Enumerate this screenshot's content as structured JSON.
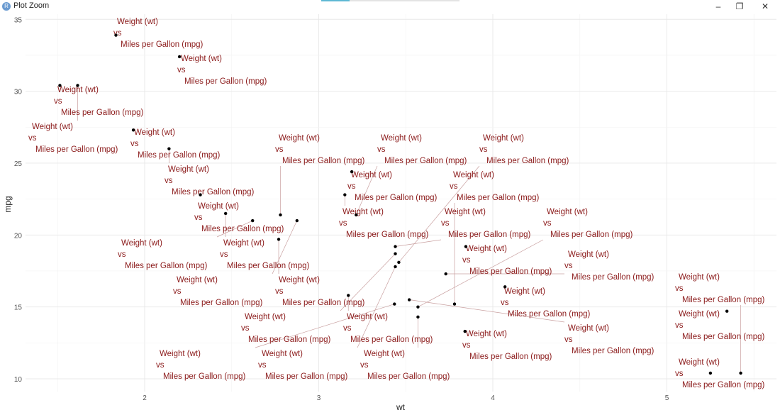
{
  "window": {
    "title": "Plot Zoom",
    "icon": "r-logo-icon",
    "minimize": "–",
    "restore": "❐",
    "close": "✕"
  },
  "chart_data": {
    "type": "scatter",
    "title": "",
    "xlabel": "wt",
    "ylabel": "mpg",
    "xlim": [
      1.33,
      5.64
    ],
    "ylim": [
      9.1,
      35.3
    ],
    "xticks": [
      "2",
      "3",
      "4",
      "5"
    ],
    "yticks": [
      "10",
      "15",
      "20",
      "25",
      "30",
      "35"
    ],
    "grid": true,
    "point_label": [
      "Weight (wt)",
      "vs",
      "Miles per Gallon (mpg)"
    ],
    "label_color": "#8b1a1a",
    "points": [
      {
        "wt": 2.62,
        "mpg": 21.0
      },
      {
        "wt": 2.875,
        "mpg": 21.0
      },
      {
        "wt": 2.32,
        "mpg": 22.8
      },
      {
        "wt": 3.215,
        "mpg": 21.4
      },
      {
        "wt": 3.44,
        "mpg": 18.7
      },
      {
        "wt": 3.46,
        "mpg": 18.1
      },
      {
        "wt": 3.57,
        "mpg": 14.3
      },
      {
        "wt": 3.19,
        "mpg": 24.4
      },
      {
        "wt": 3.15,
        "mpg": 22.8
      },
      {
        "wt": 3.44,
        "mpg": 19.2
      },
      {
        "wt": 3.44,
        "mpg": 17.8
      },
      {
        "wt": 4.07,
        "mpg": 16.4
      },
      {
        "wt": 3.73,
        "mpg": 17.3
      },
      {
        "wt": 3.78,
        "mpg": 15.2
      },
      {
        "wt": 5.25,
        "mpg": 10.4
      },
      {
        "wt": 5.424,
        "mpg": 10.4
      },
      {
        "wt": 5.345,
        "mpg": 14.7
      },
      {
        "wt": 2.2,
        "mpg": 32.4
      },
      {
        "wt": 1.615,
        "mpg": 30.4
      },
      {
        "wt": 1.835,
        "mpg": 33.9
      },
      {
        "wt": 2.465,
        "mpg": 21.5
      },
      {
        "wt": 3.52,
        "mpg": 15.5
      },
      {
        "wt": 3.435,
        "mpg": 15.2
      },
      {
        "wt": 3.84,
        "mpg": 13.3
      },
      {
        "wt": 3.845,
        "mpg": 19.2
      },
      {
        "wt": 1.935,
        "mpg": 27.3
      },
      {
        "wt": 2.14,
        "mpg": 26.0
      },
      {
        "wt": 1.513,
        "mpg": 30.4
      },
      {
        "wt": 3.17,
        "mpg": 15.8
      },
      {
        "wt": 2.77,
        "mpg": 19.7
      },
      {
        "wt": 3.57,
        "mpg": 15.0
      },
      {
        "wt": 2.78,
        "mpg": 21.4
      }
    ]
  }
}
